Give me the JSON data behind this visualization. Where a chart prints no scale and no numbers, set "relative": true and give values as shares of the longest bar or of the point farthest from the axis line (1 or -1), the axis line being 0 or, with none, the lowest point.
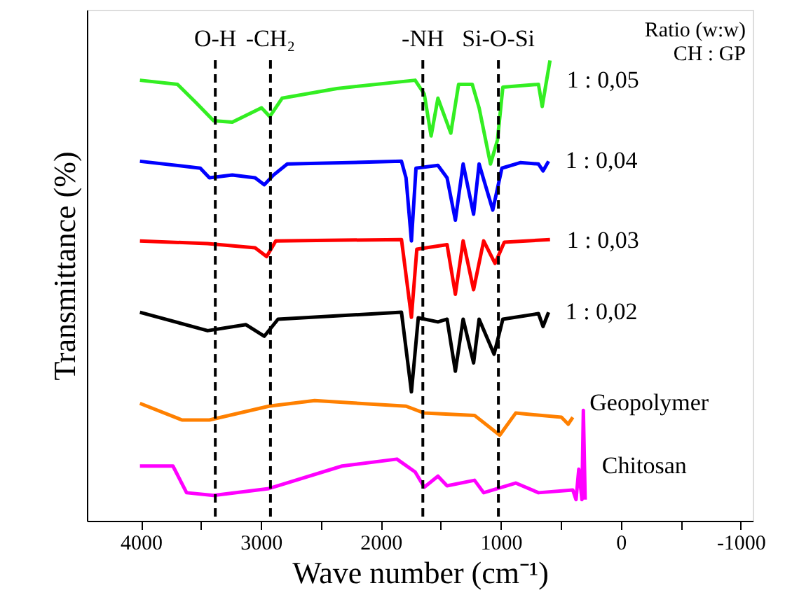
{
  "chart_data": {
    "type": "line",
    "relative": true,
    "xlabel": "Wave number (cm⁻¹)",
    "ylabel": "Transmittance (%)",
    "xlim": [
      4450,
      -1100
    ],
    "xticks": [
      4000,
      {
        "value": 3500,
        "label": null
      },
      3000,
      {
        "value": 2500,
        "label": null
      },
      2000,
      {
        "value": 1500,
        "label": null
      },
      1000,
      {
        "value": 500,
        "label": null
      },
      0,
      {
        "value": -500,
        "label": null
      },
      -1000
    ],
    "legend": false,
    "grid": false,
    "line_style": "solid",
    "marker": "none",
    "annotations": [
      "Ratio (w:w)",
      "CH : GP"
    ],
    "ref_lines": [
      {
        "axis": "x",
        "value": 3380,
        "label": "O-H",
        "color": "#000000",
        "line_style": "dashed"
      },
      {
        "axis": "x",
        "value": 2920,
        "label": "-CH₂",
        "color": "#000000",
        "line_style": "dashed"
      },
      {
        "axis": "x",
        "value": 1650,
        "label": "-NH",
        "color": "#000000",
        "line_style": "dashed"
      },
      {
        "axis": "x",
        "value": 1020,
        "label": "Si-O-Si",
        "color": "#000000",
        "line_style": "dashed"
      }
    ],
    "series": [
      {
        "name": "1 : 0,05",
        "color": "#33ee22",
        "x": [
          4008,
          3695,
          3543,
          3394,
          3238,
          2994,
          2926,
          2823,
          2366,
          1714,
          1638,
          1581,
          1524,
          1417,
          1352,
          1238,
          1181,
          1086,
          1028,
          983,
          838,
          686,
          655,
          628,
          590
        ],
        "values": [
          0.957,
          0.948,
          0.909,
          0.869,
          0.866,
          0.897,
          0.878,
          0.918,
          0.939,
          0.957,
          0.927,
          0.836,
          0.918,
          0.842,
          0.948,
          0.948,
          0.897,
          0.775,
          0.827,
          0.942,
          0.945,
          0.948,
          0.9,
          0.942,
          1.0
        ]
      },
      {
        "name": "1 : 0,04",
        "color": "#0000ff",
        "x": [
          4008,
          3505,
          3429,
          3238,
          3048,
          2971,
          2895,
          2780,
          1828,
          1790,
          1745,
          1707,
          1524,
          1448,
          1379,
          1314,
          1227,
          1181,
          1067,
          991,
          838,
          686,
          648,
          602
        ],
        "values": [
          0.781,
          0.766,
          0.745,
          0.751,
          0.745,
          0.73,
          0.751,
          0.775,
          0.781,
          0.745,
          0.608,
          0.766,
          0.772,
          0.745,
          0.653,
          0.775,
          0.666,
          0.775,
          0.675,
          0.766,
          0.778,
          0.775,
          0.76,
          0.781
        ]
      },
      {
        "name": "1 : 0,03",
        "color": "#ff0000",
        "x": [
          4008,
          3444,
          3048,
          2952,
          2876,
          1828,
          1745,
          1700,
          1448,
          1379,
          1314,
          1227,
          1143,
          1048,
          971,
          590
        ],
        "values": [
          0.608,
          0.602,
          0.593,
          0.574,
          0.608,
          0.611,
          0.442,
          0.59,
          0.6,
          0.492,
          0.608,
          0.502,
          0.608,
          0.559,
          0.605,
          0.611
        ]
      },
      {
        "name": "1 : 0,02",
        "color": "#000000",
        "x": [
          4008,
          3444,
          3124,
          2971,
          2857,
          1828,
          1745,
          1688,
          1524,
          1448,
          1379,
          1314,
          1227,
          1181,
          1056,
          983,
          686,
          648,
          602
        ],
        "values": [
          0.453,
          0.413,
          0.426,
          0.401,
          0.438,
          0.453,
          0.28,
          0.441,
          0.432,
          0.438,
          0.325,
          0.438,
          0.343,
          0.438,
          0.362,
          0.438,
          0.45,
          0.422,
          0.453
        ]
      },
      {
        "name": "Geopolymer",
        "color": "#ff8000",
        "x": [
          4008,
          3657,
          3429,
          2933,
          2552,
          1790,
          1638,
          1219,
          1009,
          876,
          495,
          438,
          400
        ],
        "values": [
          0.255,
          0.219,
          0.219,
          0.249,
          0.261,
          0.249,
          0.234,
          0.229,
          0.186,
          0.234,
          0.225,
          0.21,
          0.225
        ]
      },
      {
        "name": "Chitosan",
        "color": "#ff00ff",
        "x": [
          4008,
          3733,
          3619,
          3394,
          2933,
          2323,
          1866,
          1714,
          1638,
          1524,
          1448,
          1219,
          1143,
          876,
          686,
          400,
          373,
          350,
          324,
          312,
          297
        ],
        "values": [
          0.119,
          0.119,
          0.061,
          0.055,
          0.07,
          0.119,
          0.134,
          0.106,
          0.073,
          0.097,
          0.076,
          0.088,
          0.061,
          0.082,
          0.061,
          0.067,
          0.046,
          0.112,
          0.046,
          0.24,
          0.046
        ]
      }
    ]
  }
}
